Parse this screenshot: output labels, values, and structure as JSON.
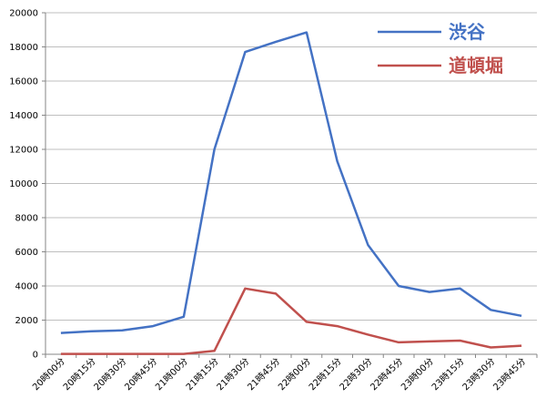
{
  "chart_data": {
    "type": "line",
    "categories": [
      "20時00分",
      "20時15分",
      "20時30分",
      "20時45分",
      "21時00分",
      "21時15分",
      "21時30分",
      "21時45分",
      "22時00分",
      "22時15分",
      "22時30分",
      "22時45分",
      "23時00分",
      "23時15分",
      "23時30分",
      "23時45分"
    ],
    "series": [
      {
        "name": "渋谷",
        "color": "#4472C4",
        "values": [
          1250,
          1350,
          1400,
          1650,
          2200,
          12000,
          17700,
          18300,
          18850,
          11300,
          6400,
          4000,
          3650,
          3850,
          2600,
          2250
        ]
      },
      {
        "name": "道頓堀",
        "color": "#C0504D",
        "values": [
          20,
          20,
          20,
          20,
          20,
          200,
          3850,
          3550,
          1900,
          1650,
          1150,
          700,
          750,
          800,
          400,
          500
        ]
      }
    ],
    "title": "",
    "xlabel": "",
    "ylabel": "",
    "ylim": [
      0,
      20000
    ],
    "yticks": [
      0,
      2000,
      4000,
      6000,
      8000,
      10000,
      12000,
      14000,
      16000,
      18000,
      20000
    ],
    "grid": true,
    "legend_position": "top-right",
    "colors": {
      "gridline": "#BFBFBF",
      "axis": "#868686"
    }
  }
}
